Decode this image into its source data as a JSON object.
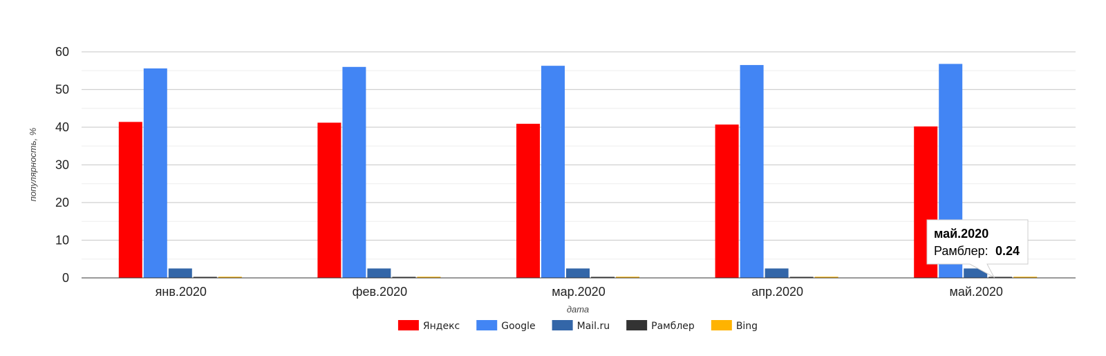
{
  "chart_data": {
    "type": "bar",
    "categories": [
      "янв.2020",
      "фев.2020",
      "мар.2020",
      "апр.2020",
      "май.2020"
    ],
    "series": [
      {
        "name": "Яндекс",
        "color": "#ff0000",
        "values": [
          41.4,
          41.2,
          40.9,
          40.7,
          40.2
        ]
      },
      {
        "name": "Google",
        "color": "#4285f4",
        "values": [
          55.6,
          56.0,
          56.3,
          56.5,
          56.8
        ]
      },
      {
        "name": "Mail.ru",
        "color": "#3366a8",
        "values": [
          2.5,
          2.5,
          2.5,
          2.5,
          2.5
        ]
      },
      {
        "name": "Рамблер",
        "color": "#333333",
        "values": [
          0.24,
          0.24,
          0.24,
          0.24,
          0.24
        ]
      },
      {
        "name": "Bing",
        "color": "#ffb300",
        "values": [
          0.3,
          0.3,
          0.3,
          0.3,
          0.3
        ]
      }
    ],
    "xlabel": "дата",
    "ylabel": "популярность, %",
    "ylim": [
      0,
      60
    ],
    "yticks": [
      0,
      10,
      20,
      30,
      40,
      50,
      60
    ],
    "grid": true,
    "legend_position": "bottom",
    "tooltip": {
      "title": "май.2020",
      "label": "Рамблер:",
      "value": "0.24"
    }
  }
}
